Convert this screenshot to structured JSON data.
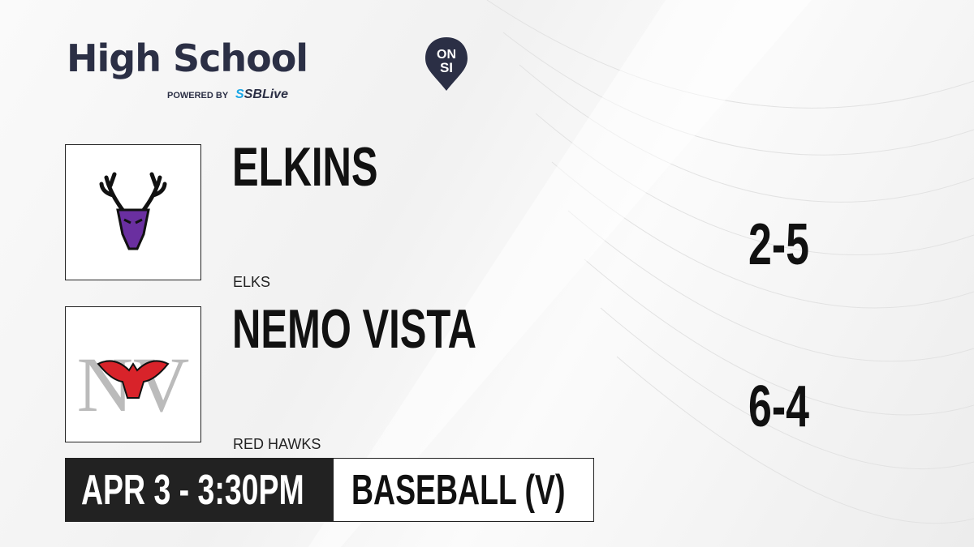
{
  "brand": {
    "title": "High School",
    "badge_top": "ON",
    "badge_bottom": "SI",
    "powered_by": "POWERED BY",
    "partner_s": "S",
    "partner": "SBLive",
    "pin_color": "#2b2f45",
    "partner_color": "#1aa6e6"
  },
  "teams": [
    {
      "name": "ELKINS",
      "mascot": "ELKS",
      "record": "2-5",
      "logo_icon": "elk-head-icon",
      "logo_color": "#6a2fa0"
    },
    {
      "name": "NEMO VISTA",
      "mascot": "RED HAWKS",
      "record": "6-4",
      "logo_icon": "red-hawk-nv-icon",
      "logo_color": "#d8232a"
    }
  ],
  "game": {
    "datetime": "APR 3 - 3:30PM",
    "sport": "BASEBALL (V)"
  }
}
